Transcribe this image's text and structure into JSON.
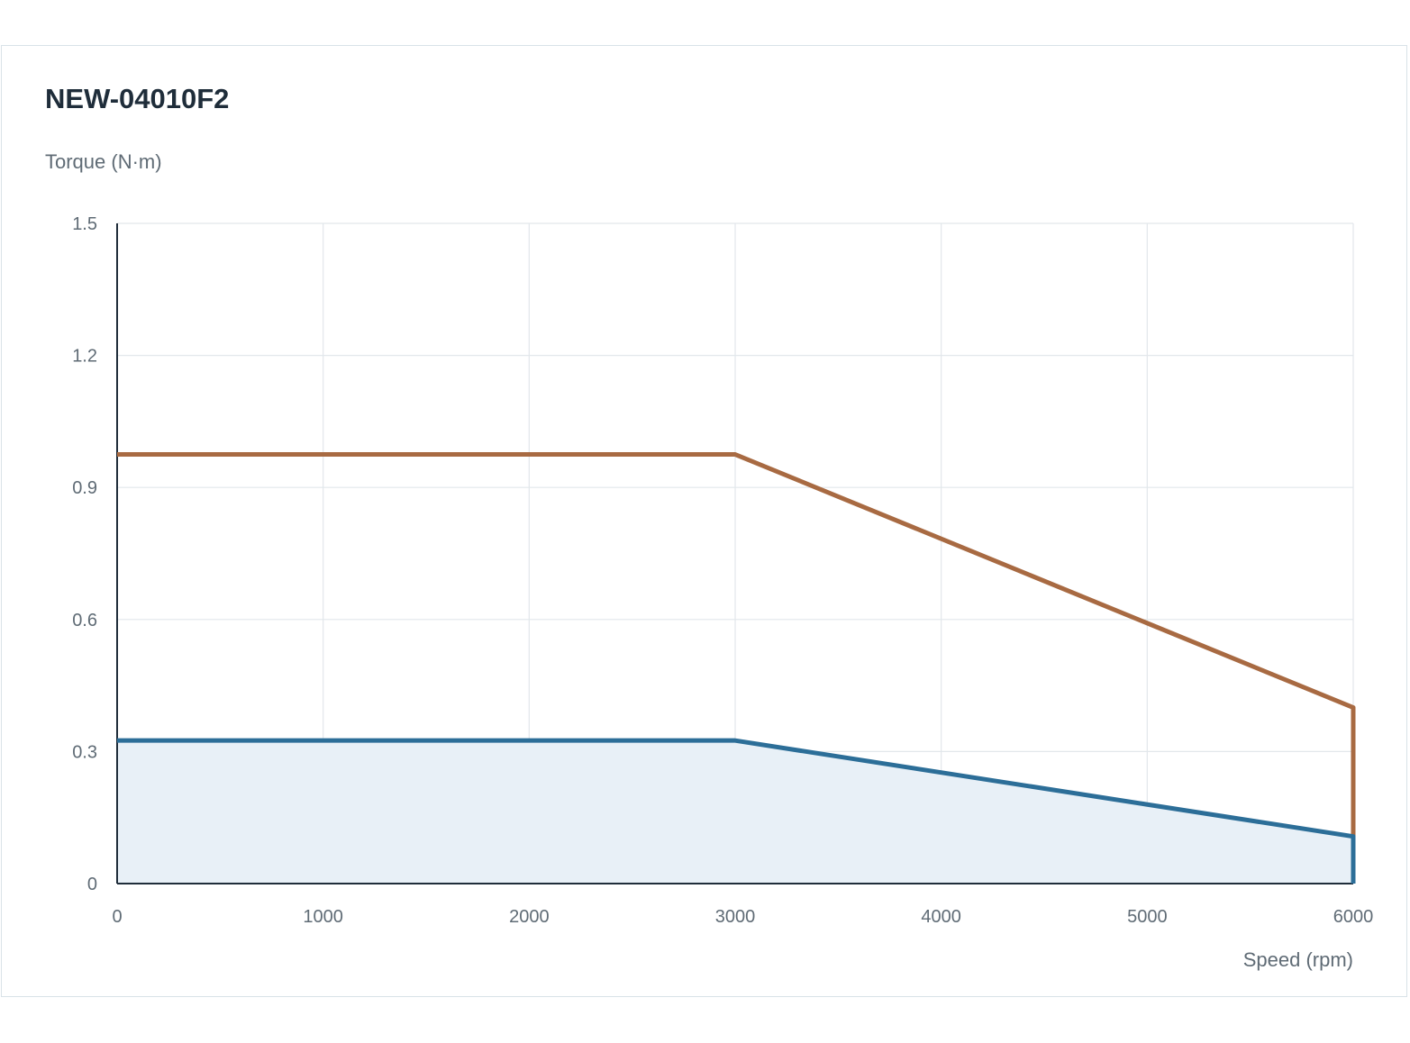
{
  "chart_data": {
    "type": "line",
    "title": "NEW-04010F2",
    "ylabel": "Torque (N·m)",
    "xlabel": "Speed (rpm)",
    "xlim": [
      0,
      6000
    ],
    "ylim": [
      0,
      1.5
    ],
    "x_ticks": [
      "0",
      "1000",
      "2000",
      "3000",
      "4000",
      "5000",
      "6000"
    ],
    "y_ticks": [
      "0",
      "0.3",
      "0.6",
      "0.9",
      "1.2",
      "1.5"
    ],
    "grid": true,
    "series": [
      {
        "x": [
          0,
          3000,
          6000,
          6000
        ],
        "y": [
          0.975,
          0.975,
          0.4,
          0.0
        ],
        "color": "#a86a42",
        "fill": false
      },
      {
        "x": [
          0,
          3000,
          6000,
          6000
        ],
        "y": [
          0.325,
          0.325,
          0.107,
          0.0
        ],
        "color": "#2c6e98",
        "fill": true,
        "fill_color": "#e8f0f7"
      }
    ]
  }
}
